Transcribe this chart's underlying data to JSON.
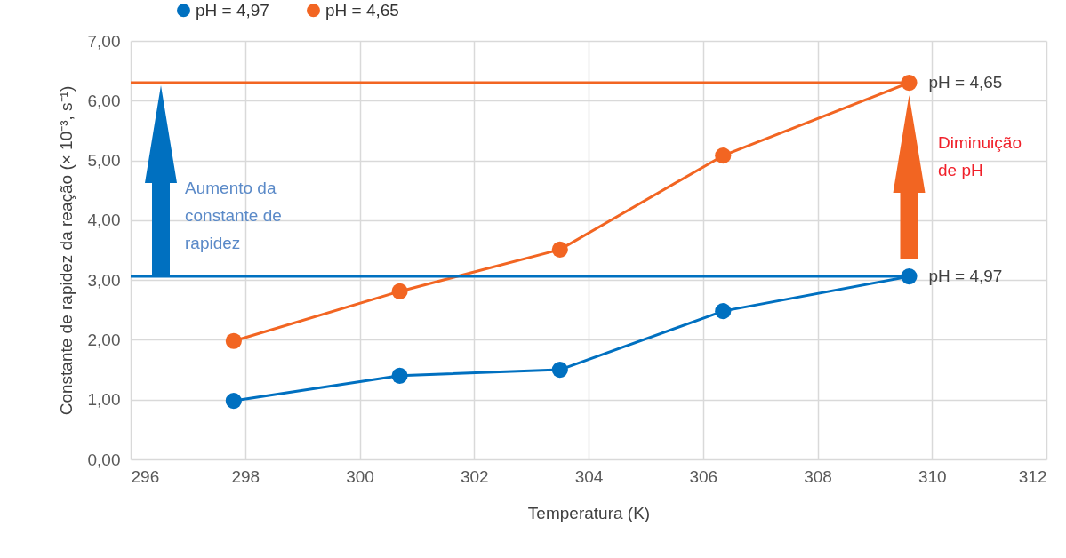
{
  "chart_data": {
    "type": "line",
    "xlabel": "Temperatura (K)",
    "ylabel": "Constante de rapidez da reação (× 10⁻³, s⁻¹)",
    "x": [
      297.8,
      300.7,
      303.5,
      306.35,
      309.6
    ],
    "series": [
      {
        "name": "pH = 4,97",
        "color": "#0070c0",
        "values": [
          0.98,
          1.4,
          1.5,
          2.48,
          3.06
        ]
      },
      {
        "name": "pH = 4,65",
        "color": "#f26522",
        "values": [
          1.98,
          2.81,
          3.51,
          5.08,
          6.3
        ]
      }
    ],
    "xlim": [
      296,
      312
    ],
    "xticks": [
      296,
      298,
      300,
      302,
      304,
      306,
      308,
      310,
      312
    ],
    "ylim": [
      0,
      7
    ],
    "yticks": [
      {
        "value": 0,
        "label": "0,00"
      },
      {
        "value": 1,
        "label": "1,00"
      },
      {
        "value": 2,
        "label": "2,00"
      },
      {
        "value": 3,
        "label": "3,00"
      },
      {
        "value": 4,
        "label": "4,00"
      },
      {
        "value": 5,
        "label": "5,00"
      },
      {
        "value": 6,
        "label": "6,00"
      },
      {
        "value": 7,
        "label": "7,00"
      }
    ],
    "ref_lines": [
      {
        "axis": "y",
        "value": 6.3,
        "color": "#f26522"
      },
      {
        "axis": "y",
        "value": 3.06,
        "color": "#0070c0"
      }
    ],
    "annotations": [
      "Aumento da\nconstante de\nrapidez",
      "Diminuição\nde pH",
      {
        "text": "pH = 4,65",
        "x": 309.6,
        "y": 6.3
      },
      {
        "text": "pH = 4,97",
        "x": 309.6,
        "y": 3.06
      }
    ],
    "grid": true,
    "legend": "top left",
    "marker": "circle",
    "line_style": "solid"
  }
}
